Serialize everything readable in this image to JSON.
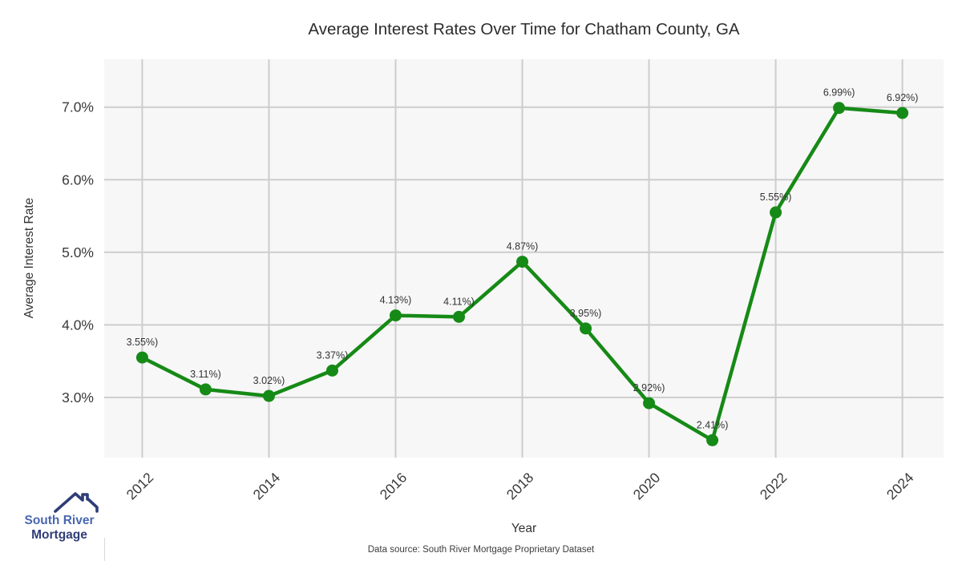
{
  "title": "Average Interest Rates Over Time for Chatham County, GA",
  "caption": "Data source: South River Mortgage Proprietary Dataset",
  "chart_data": {
    "type": "line",
    "title": "Average Interest Rates Over Time for Chatham County, GA",
    "xlabel": "Year",
    "ylabel": "Average Interest Rate",
    "x": [
      2012,
      2013,
      2014,
      2015,
      2016,
      2017,
      2018,
      2019,
      2020,
      2021,
      2022,
      2023,
      2024
    ],
    "values": [
      3.55,
      3.11,
      3.02,
      3.37,
      4.13,
      4.11,
      4.87,
      3.95,
      2.92,
      2.41,
      5.55,
      6.99,
      6.92
    ],
    "point_labels": [
      "3.55%)",
      "3.11%)",
      "3.02%)",
      "3.37%)",
      "4.13%)",
      "4.11%)",
      "4.87%)",
      "3.95%)",
      "2.92%)",
      "2.41%)",
      "5.55%)",
      "6.99%)",
      "6.92%)"
    ],
    "x_ticks": [
      2012,
      2014,
      2016,
      2018,
      2020,
      2022,
      2024
    ],
    "y_ticks": [
      {
        "label": "3.0%",
        "value": 3.0
      },
      {
        "label": "4.0%",
        "value": 4.0
      },
      {
        "label": "5.0%",
        "value": 5.0
      },
      {
        "label": "6.0%",
        "value": 6.0
      },
      {
        "label": "7.0%",
        "value": 7.0
      }
    ],
    "xlim": [
      2011.4,
      2024.65
    ],
    "ylim": [
      2.17,
      7.66
    ],
    "grid": true,
    "legend": "none",
    "line_color": "#168a16",
    "marker_color": "#168a16",
    "plot_bg": "#f7f7f7",
    "grid_color": "#cdcdcd",
    "tick_color": "#3a3a3a",
    "label_color": "#333333"
  },
  "logo": {
    "icon": "house-roof-icon",
    "line1": "South River",
    "line2": "Mortgage",
    "accent_color": "#4a67b0",
    "navy_color": "#2f3d78"
  }
}
